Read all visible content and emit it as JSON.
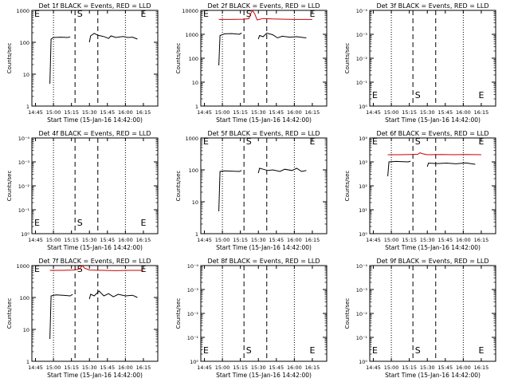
{
  "colors": {
    "events": "#000000",
    "lld": "#cc0000"
  },
  "chart_data": [
    {
      "id": "det1f",
      "type": "line",
      "title": "Det 1f BLACK = Events, RED = LLD",
      "xlabel": "Start Time (15-Jan-16 14:42:00)",
      "ylabel": "Counts/sec",
      "xticks": [
        "14:45",
        "15:00",
        "15:15",
        "15:30",
        "15:45",
        "16:00",
        "16:15"
      ],
      "yticks": [
        "1",
        "10",
        "100",
        "1000"
      ],
      "ytick_style": "plain",
      "ylim_log": [
        0,
        3
      ],
      "markers": [
        {
          "label": "E",
          "t": 0
        },
        {
          "label": "S",
          "t": 40
        },
        {
          "label": "E",
          "t": 93
        }
      ],
      "series": [
        {
          "name": "Events",
          "color": "#000000",
          "segments": [
            [
              [
                15,
                0.7
              ],
              [
                16,
                2.1
              ],
              [
                18,
                2.15
              ],
              [
                24,
                2.16
              ],
              [
                30,
                2.15
              ],
              [
                32,
                2.17
              ]
            ],
            [
              [
                48,
                2.0
              ],
              [
                49,
                2.2
              ],
              [
                52,
                2.28
              ],
              [
                55,
                2.22
              ],
              [
                60,
                2.18
              ],
              [
                64,
                2.12
              ],
              [
                66,
                2.2
              ],
              [
                70,
                2.15
              ],
              [
                76,
                2.18
              ],
              [
                80,
                2.15
              ],
              [
                84,
                2.16
              ],
              [
                88,
                2.1
              ]
            ]
          ]
        }
      ]
    },
    {
      "id": "det2f",
      "type": "line",
      "title": "Det 2f BLACK = Events, RED = LLD",
      "xlabel": "Start Time (15-Jan-16 14:42:00)",
      "ylabel": "Counts/sec",
      "xticks": [
        "14:45",
        "15:00",
        "15:15",
        "15:30",
        "15:45",
        "16:00",
        "16:15"
      ],
      "yticks": [
        "1",
        "10",
        "100",
        "1000",
        "10000"
      ],
      "ytick_style": "plain",
      "ylim_log": [
        0,
        4
      ],
      "markers": [
        {
          "label": "E",
          "t": 0
        },
        {
          "label": "S",
          "t": 40
        },
        {
          "label": "E",
          "t": 93
        }
      ],
      "series": [
        {
          "name": "Events",
          "color": "#000000",
          "segments": [
            [
              [
                15,
                1.7
              ],
              [
                16,
                2.95
              ],
              [
                20,
                3.02
              ],
              [
                26,
                3.03
              ],
              [
                32,
                3.0
              ],
              [
                34,
                3.05
              ]
            ],
            [
              [
                48,
                2.8
              ],
              [
                49,
                2.95
              ],
              [
                52,
                2.9
              ],
              [
                55,
                3.05
              ],
              [
                60,
                2.98
              ],
              [
                64,
                2.85
              ],
              [
                68,
                2.92
              ],
              [
                74,
                2.88
              ],
              [
                80,
                2.9
              ],
              [
                88,
                2.85
              ]
            ]
          ]
        },
        {
          "name": "LLD",
          "color": "#cc0000",
          "segments": [
            [
              [
                15,
                3.62
              ],
              [
                25,
                3.62
              ],
              [
                35,
                3.63
              ],
              [
                40,
                3.65
              ],
              [
                42,
                3.9
              ],
              [
                43,
                4.0
              ],
              [
                45,
                3.85
              ],
              [
                47,
                3.6
              ],
              [
                52,
                3.66
              ],
              [
                60,
                3.64
              ],
              [
                70,
                3.63
              ],
              [
                80,
                3.62
              ],
              [
                90,
                3.62
              ],
              [
                93,
                3.62
              ]
            ]
          ]
        }
      ]
    },
    {
      "id": "det3f",
      "type": "line",
      "title": "Det 3f BLACK = Events, RED = LLD",
      "xlabel": "Start Time (15-Jan-16 14:42:00)",
      "ylabel": "Counts/sec",
      "xticks": [
        "14:45",
        "15:00",
        "15:15",
        "15:30",
        "15:45",
        "16:00",
        "16:15"
      ],
      "yticks": [
        "10⁰",
        "10⁻¹",
        "10⁻²",
        "10⁻³",
        "10⁻⁴"
      ],
      "ytick_style": "sci",
      "ylim_log": [
        0,
        4
      ],
      "markers": [
        {
          "label": "E",
          "t": 0
        },
        {
          "label": "S",
          "t": 40
        },
        {
          "label": "E",
          "t": 93
        }
      ],
      "series": []
    },
    {
      "id": "det4f",
      "type": "line",
      "title": "Det 4f BLACK = Events, RED = LLD",
      "xlabel": "Start Time (15-Jan-16 14:42:00)",
      "ylabel": "Counts/sec",
      "xticks": [
        "14:45",
        "15:00",
        "15:15",
        "15:30",
        "15:45",
        "16:00",
        "16:15"
      ],
      "yticks": [
        "10⁰",
        "10⁻¹",
        "10⁻²",
        "10⁻³",
        "10⁻⁴"
      ],
      "ytick_style": "sci",
      "ylim_log": [
        0,
        4
      ],
      "markers": [
        {
          "label": "E",
          "t": 0
        },
        {
          "label": "S",
          "t": 40
        },
        {
          "label": "E",
          "t": 93
        }
      ],
      "series": []
    },
    {
      "id": "det5f",
      "type": "line",
      "title": "Det 5f BLACK = Events, RED = LLD",
      "xlabel": "Start Time (15-Jan-16 14:42:00)",
      "ylabel": "Counts/sec",
      "xticks": [
        "14:45",
        "15:00",
        "15:15",
        "15:30",
        "15:45",
        "16:00",
        "16:15"
      ],
      "yticks": [
        "1",
        "10",
        "100",
        "1000"
      ],
      "ytick_style": "plain",
      "ylim_log": [
        0,
        3
      ],
      "markers": [
        {
          "label": "E",
          "t": 0
        },
        {
          "label": "S",
          "t": 40
        },
        {
          "label": "E",
          "t": 93
        }
      ],
      "series": [
        {
          "name": "Events",
          "color": "#000000",
          "segments": [
            [
              [
                15,
                0.7
              ],
              [
                16,
                1.95
              ],
              [
                20,
                1.97
              ],
              [
                26,
                1.96
              ],
              [
                32,
                1.95
              ],
              [
                34,
                1.98
              ]
            ],
            [
              [
                48,
                1.9
              ],
              [
                49,
                2.05
              ],
              [
                52,
                2.02
              ],
              [
                56,
                1.98
              ],
              [
                60,
                2.0
              ],
              [
                66,
                1.95
              ],
              [
                70,
                2.02
              ],
              [
                76,
                1.98
              ],
              [
                80,
                2.05
              ],
              [
                84,
                1.95
              ],
              [
                88,
                1.98
              ]
            ]
          ]
        }
      ]
    },
    {
      "id": "det6f",
      "type": "line",
      "title": "Det 6f BLACK = Events, RED = LLD",
      "xlabel": "Start Time (15-Jan-16 14:42:00)",
      "ylabel": "Counts/sec",
      "xticks": [
        "14:45",
        "15:00",
        "15:15",
        "15:30",
        "15:45",
        "16:00",
        "16:15"
      ],
      "yticks": [
        "10⁰",
        "10¹",
        "10²",
        "10³",
        "10⁴"
      ],
      "ytick_style": "sci",
      "ylim_log": [
        0,
        4
      ],
      "markers": [
        {
          "label": "E",
          "t": 0
        },
        {
          "label": "S",
          "t": 40
        },
        {
          "label": "E",
          "t": 93
        }
      ],
      "series": [
        {
          "name": "Events",
          "color": "#000000",
          "segments": [
            [
              [
                15,
                2.4
              ],
              [
                16,
                3.0
              ],
              [
                22,
                3.02
              ],
              [
                28,
                3.01
              ],
              [
                32,
                3.0
              ],
              [
                34,
                3.03
              ]
            ],
            [
              [
                48,
                2.8
              ],
              [
                49,
                2.95
              ],
              [
                56,
                2.93
              ],
              [
                64,
                2.95
              ],
              [
                72,
                2.92
              ],
              [
                80,
                2.96
              ],
              [
                88,
                2.9
              ]
            ]
          ]
        },
        {
          "name": "LLD",
          "color": "#cc0000",
          "segments": [
            [
              [
                15,
                3.3
              ],
              [
                25,
                3.3
              ],
              [
                35,
                3.31
              ],
              [
                40,
                3.32
              ],
              [
                42,
                3.38
              ],
              [
                44,
                3.34
              ],
              [
                48,
                3.3
              ],
              [
                60,
                3.31
              ],
              [
                70,
                3.3
              ],
              [
                80,
                3.31
              ],
              [
                93,
                3.3
              ]
            ]
          ]
        }
      ]
    },
    {
      "id": "det7f",
      "type": "line",
      "title": "Det 7f BLACK = Events, RED = LLD",
      "xlabel": "Start Time (15-Jan-16 14:42:00)",
      "ylabel": "Counts/sec",
      "xticks": [
        "14:45",
        "15:00",
        "15:15",
        "15:30",
        "15:45",
        "16:00",
        "16:15"
      ],
      "yticks": [
        "1",
        "10",
        "100",
        "1000"
      ],
      "ytick_style": "plain",
      "ylim_log": [
        0,
        3
      ],
      "markers": [
        {
          "label": "E",
          "t": 0
        },
        {
          "label": "S",
          "t": 40
        },
        {
          "label": "E",
          "t": 93
        }
      ],
      "series": [
        {
          "name": "Events",
          "color": "#000000",
          "segments": [
            [
              [
                15,
                0.7
              ],
              [
                16,
                2.05
              ],
              [
                20,
                2.08
              ],
              [
                26,
                2.07
              ],
              [
                32,
                2.05
              ],
              [
                34,
                2.1
              ]
            ],
            [
              [
                48,
                1.95
              ],
              [
                49,
                2.1
              ],
              [
                52,
                2.05
              ],
              [
                56,
                2.2
              ],
              [
                60,
                2.05
              ],
              [
                64,
                2.12
              ],
              [
                68,
                2.02
              ],
              [
                72,
                2.1
              ],
              [
                78,
                2.05
              ],
              [
                84,
                2.07
              ],
              [
                88,
                2.0
              ]
            ]
          ]
        },
        {
          "name": "LLD",
          "color": "#cc0000",
          "segments": [
            [
              [
                15,
                2.85
              ],
              [
                25,
                2.85
              ],
              [
                35,
                2.86
              ],
              [
                40,
                2.9
              ],
              [
                42,
                3.0
              ],
              [
                44,
                2.92
              ],
              [
                48,
                2.86
              ],
              [
                60,
                2.85
              ],
              [
                70,
                2.84
              ],
              [
                80,
                2.85
              ],
              [
                93,
                2.85
              ]
            ]
          ]
        }
      ]
    },
    {
      "id": "det8f",
      "type": "line",
      "title": "Det 8f BLACK = Events, RED = LLD",
      "xlabel": "Start Time (15-Jan-16 14:42:00)",
      "ylabel": "Counts/sec",
      "xticks": [
        "14:45",
        "15:00",
        "15:15",
        "15:30",
        "15:45",
        "16:00",
        "16:15"
      ],
      "yticks": [
        "10⁰",
        "10⁻¹",
        "10⁻²",
        "10⁻³",
        "10⁻⁴"
      ],
      "ytick_style": "sci",
      "ylim_log": [
        0,
        4
      ],
      "markers": [
        {
          "label": "E",
          "t": 0
        },
        {
          "label": "S",
          "t": 40
        },
        {
          "label": "E",
          "t": 93
        }
      ],
      "series": []
    },
    {
      "id": "det9f",
      "type": "line",
      "title": "Det 9f BLACK = Events, RED = LLD",
      "xlabel": "Start Time (15-Jan-16 14:42:00)",
      "ylabel": "Counts/sec",
      "xticks": [
        "14:45",
        "15:00",
        "15:15",
        "15:30",
        "15:45",
        "16:00",
        "16:15"
      ],
      "yticks": [
        "10⁰",
        "10⁻¹",
        "10⁻²",
        "10⁻³",
        "10⁻⁴"
      ],
      "ytick_style": "sci",
      "ylim_log": [
        0,
        4
      ],
      "markers": [
        {
          "label": "E",
          "t": 0
        },
        {
          "label": "S",
          "t": 40
        },
        {
          "label": "E",
          "t": 93
        }
      ],
      "series": []
    }
  ]
}
